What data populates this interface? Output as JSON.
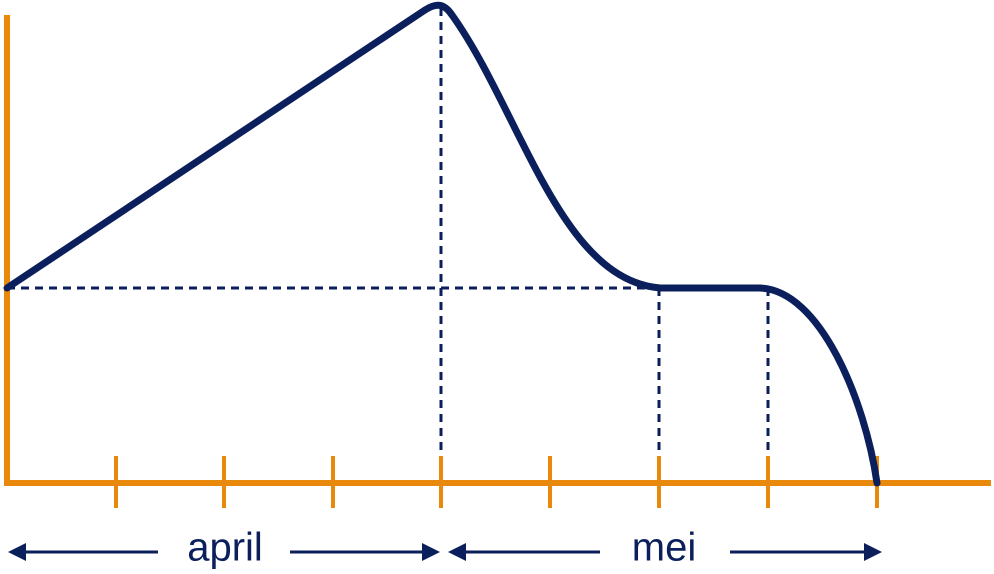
{
  "periods": [
    {
      "label": "april"
    },
    {
      "label": "mei"
    }
  ]
}
